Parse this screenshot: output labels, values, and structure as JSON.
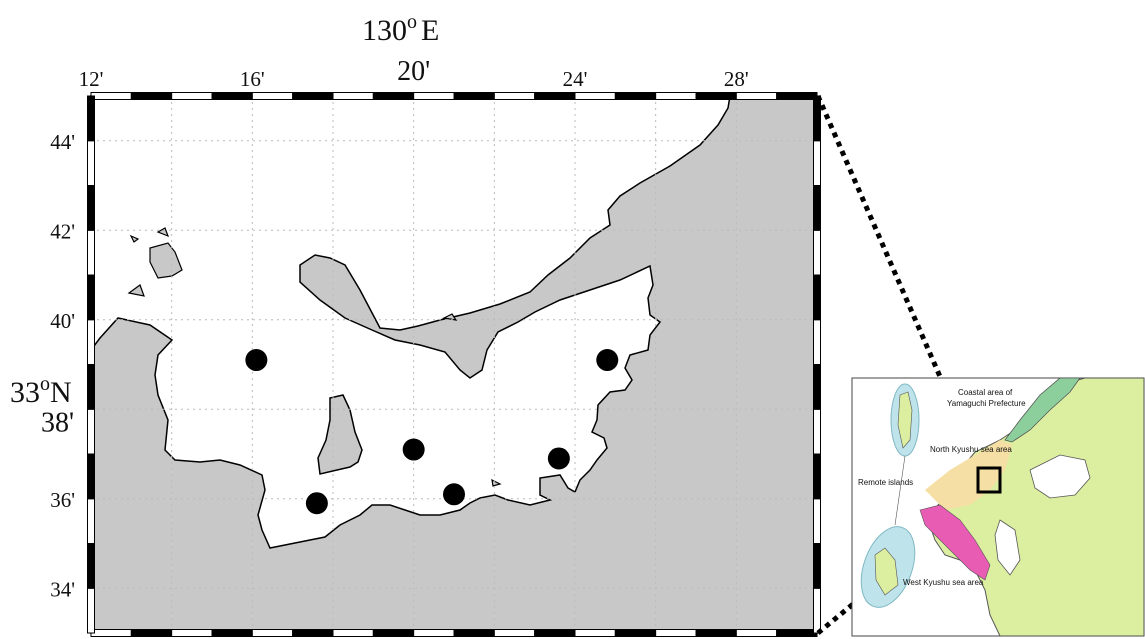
{
  "map": {
    "lon_title": "130°E",
    "lon_title_base": "130",
    "lon_title_deg": "o",
    "lon_title_suffix": "E",
    "lat_title_base": "33",
    "lat_title_deg": "o",
    "lat_title_suffix": "N",
    "lon_ticks": [
      "12'",
      "16'",
      "20'",
      "24'",
      "28'"
    ],
    "lat_ticks": [
      "44'",
      "42'",
      "40'",
      "38'",
      "36'",
      "34'"
    ],
    "land_color": "#c8c8c8",
    "sea_color": "#ffffff",
    "stations": [
      {
        "lon_min": 16.1,
        "lat_min": 39.1
      },
      {
        "lon_min": 24.8,
        "lat_min": 39.1
      },
      {
        "lon_min": 20.0,
        "lat_min": 37.1
      },
      {
        "lon_min": 23.6,
        "lat_min": 36.9
      },
      {
        "lon_min": 21.0,
        "lat_min": 36.1
      },
      {
        "lon_min": 17.6,
        "lat_min": 35.9
      }
    ]
  },
  "inset": {
    "label_yamaguchi_1": "Coastal area of",
    "label_yamaguchi_2": "Yamaguchi Prefecture",
    "label_north_kyushu": "North Kyushu sea area",
    "label_remote_islands": "Remote islands",
    "label_west_kyushu": "West Kyushu sea area",
    "colors": {
      "land": "#dcefa0",
      "yamaguchi": "#8ccf9c",
      "north_kyushu": "#f6dfa4",
      "west_kyushu": "#e85cb4",
      "islands": "#bfe3ea"
    }
  }
}
